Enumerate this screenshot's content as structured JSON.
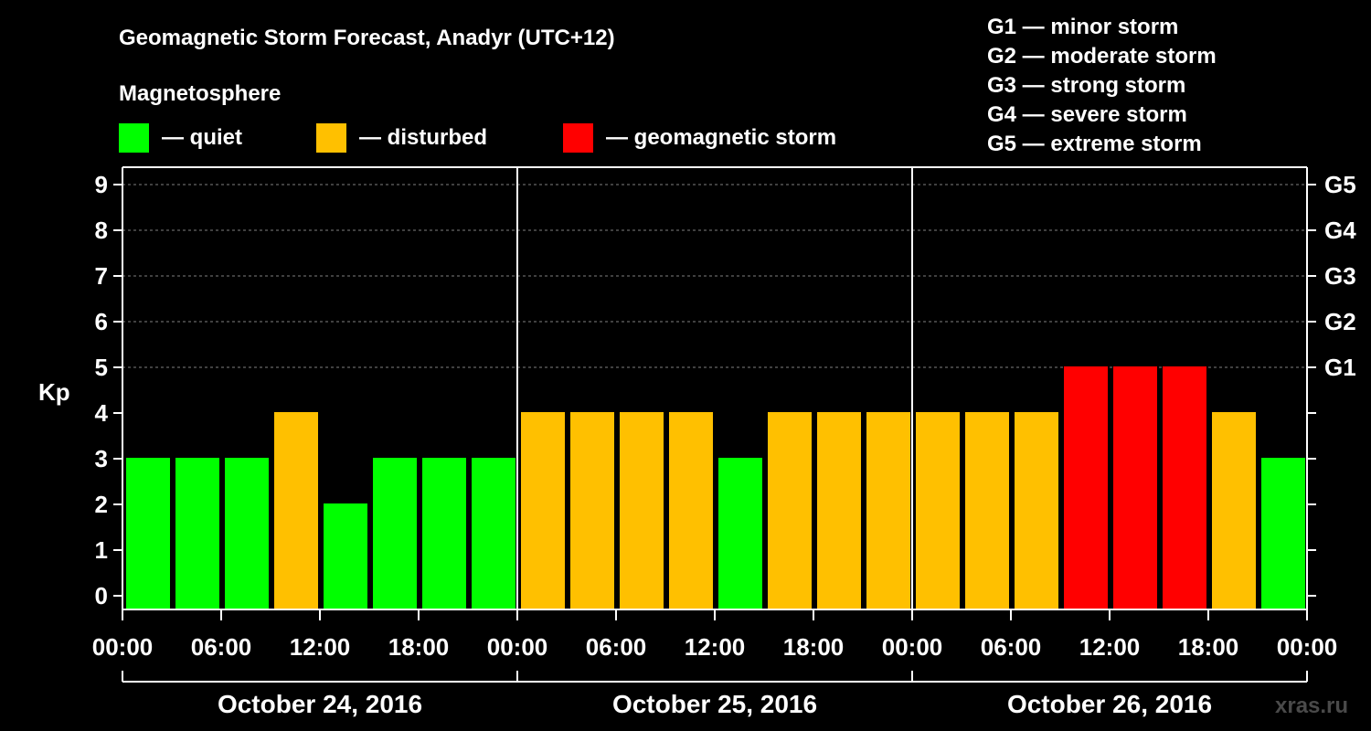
{
  "chart_data": {
    "type": "bar",
    "title": "Geomagnetic Storm Forecast, Anadyr (UTC+12)",
    "ylabel": "Kp",
    "ylim": [
      0,
      9
    ],
    "yticks": [
      "0",
      "1",
      "2",
      "3",
      "4",
      "5",
      "6",
      "7",
      "8",
      "9"
    ],
    "right_axis": [
      {
        "kp": 5,
        "label": "G1"
      },
      {
        "kp": 6,
        "label": "G2"
      },
      {
        "kp": 7,
        "label": "G3"
      },
      {
        "kp": 8,
        "label": "G4"
      },
      {
        "kp": 9,
        "label": "G5"
      }
    ],
    "time_labels": [
      "00:00",
      "06:00",
      "12:00",
      "18:00",
      "00:00",
      "06:00",
      "12:00",
      "18:00",
      "00:00",
      "06:00",
      "12:00",
      "18:00",
      "00:00"
    ],
    "days": [
      "October 24, 2016",
      "October 25, 2016",
      "October 26, 2016"
    ],
    "values": [
      3,
      3,
      3,
      4,
      2,
      3,
      3,
      3,
      4,
      4,
      4,
      4,
      3,
      4,
      4,
      4,
      4,
      4,
      4,
      5,
      5,
      5,
      4,
      3
    ],
    "legend_title": "Magnetosphere",
    "legend": [
      {
        "label": "— quiet",
        "color": "#00ff00"
      },
      {
        "label": "— disturbed",
        "color": "#ffc000"
      },
      {
        "label": "— geomagnetic storm",
        "color": "#ff0000"
      }
    ],
    "storm_scale": [
      "G1 — minor storm",
      "G2 — moderate storm",
      "G3 — strong storm",
      "G4 — severe storm",
      "G5 — extreme storm"
    ],
    "watermark": "xras.ru"
  }
}
